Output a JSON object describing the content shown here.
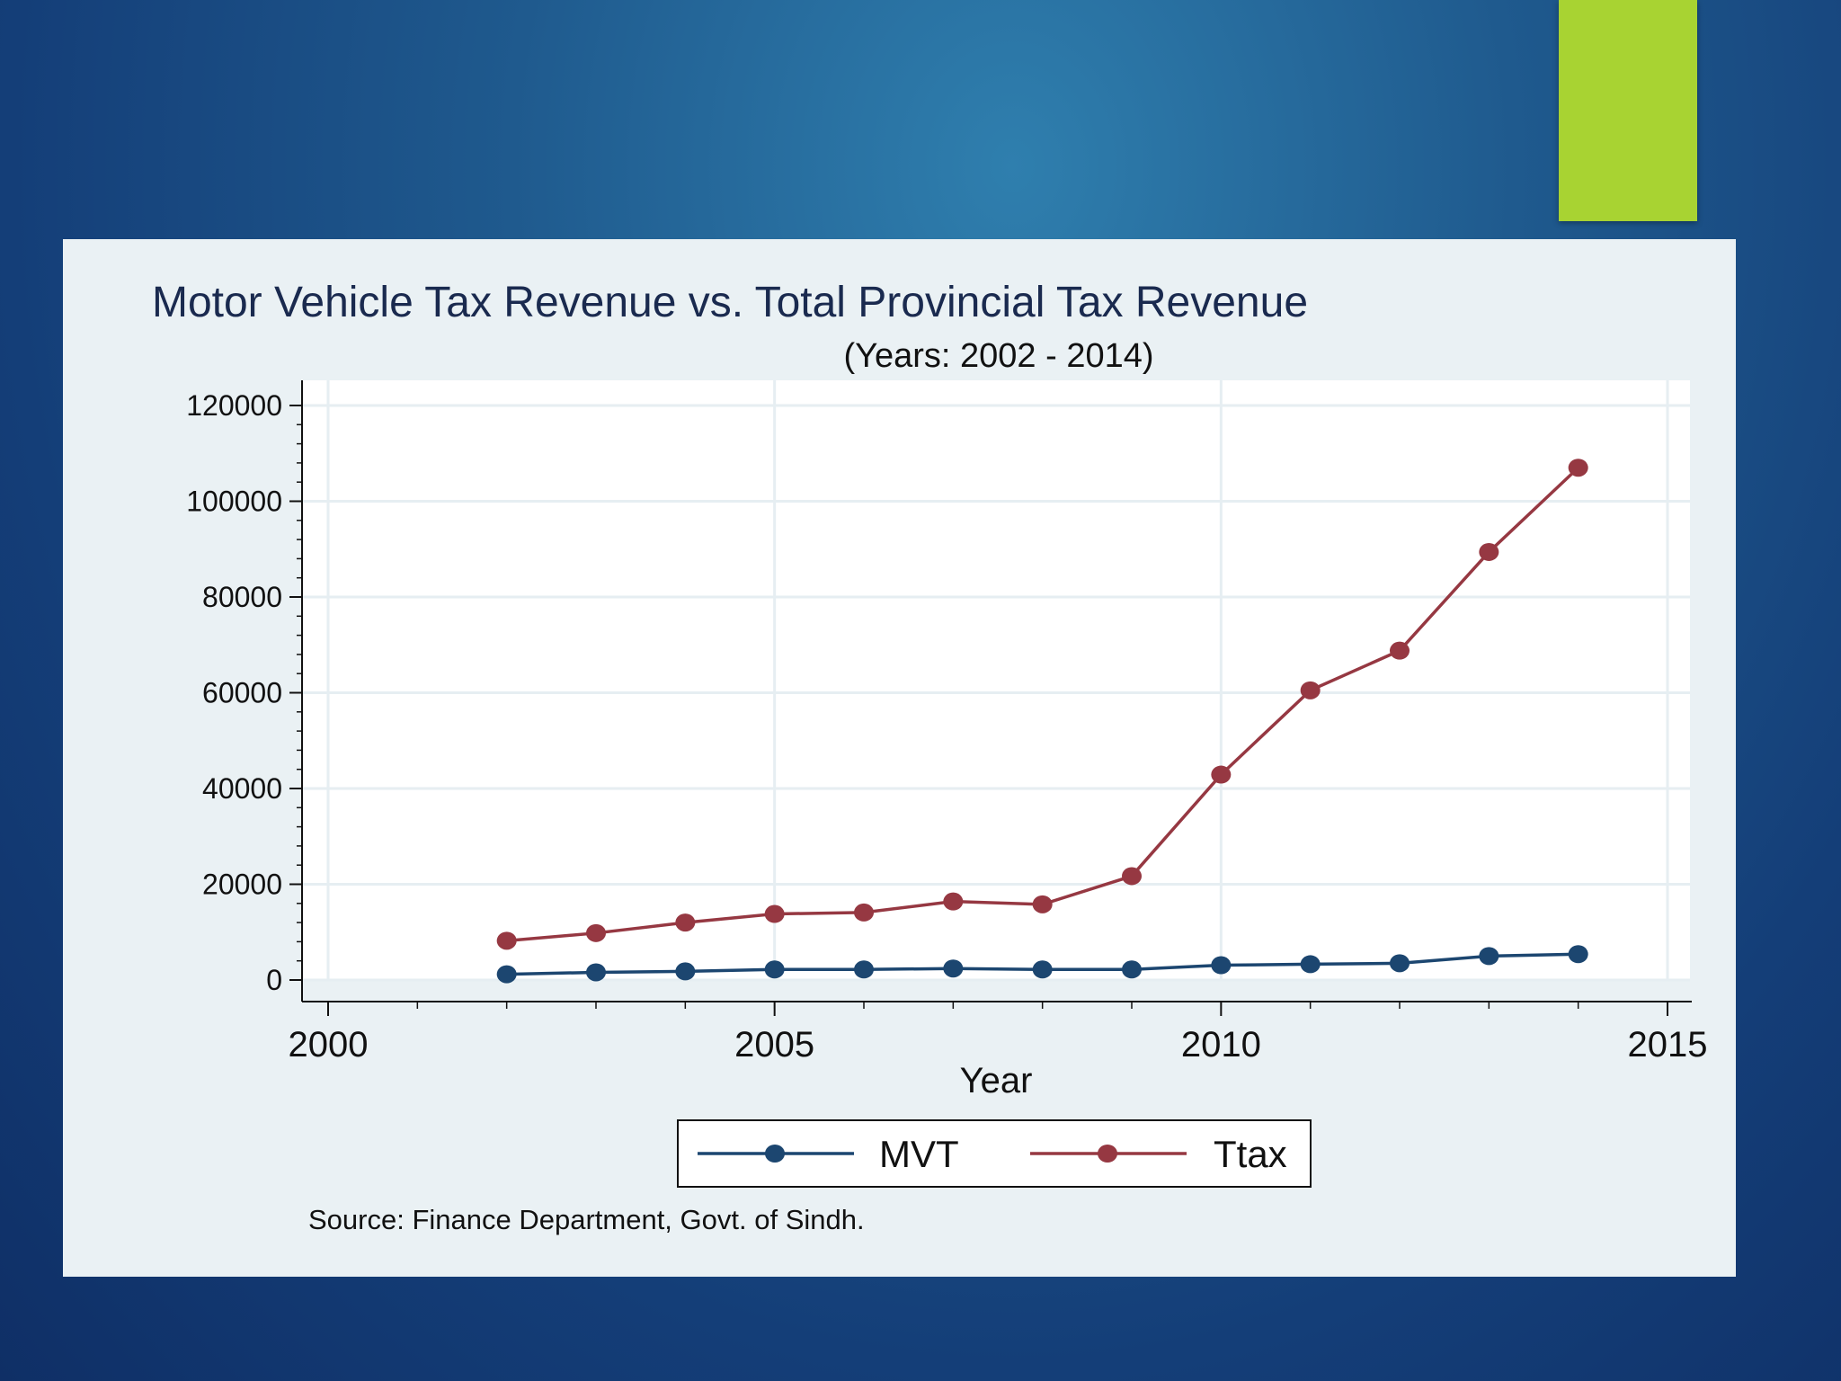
{
  "slide": {
    "accent_color": "#a8d332"
  },
  "chart_data": {
    "type": "line",
    "title": "Motor Vehicle Tax Revenue vs. Total Provincial Tax Revenue",
    "subtitle": "(Years: 2002 - 2014)",
    "xlabel": "Year",
    "ylabel": "",
    "x": [
      2002,
      2003,
      2004,
      2005,
      2006,
      2007,
      2008,
      2009,
      2010,
      2011,
      2012,
      2013,
      2014
    ],
    "series": [
      {
        "name": "MVT",
        "color": "#1c4670",
        "values": [
          1200,
          1600,
          1800,
          2200,
          2200,
          2400,
          2200,
          2200,
          3100,
          3300,
          3500,
          5000,
          5400
        ]
      },
      {
        "name": "Ttax",
        "color": "#963842",
        "values": [
          8200,
          9800,
          12000,
          13800,
          14100,
          16400,
          15800,
          21700,
          42900,
          60500,
          68800,
          89400,
          107000
        ]
      }
    ],
    "xlim": [
      2000,
      2015
    ],
    "ylim": [
      0,
      120000
    ],
    "xticks": [
      "2000",
      "2005",
      "2010",
      "2015"
    ],
    "yticks": [
      "0",
      "20000",
      "40000",
      "60000",
      "80000",
      "100000",
      "120000"
    ],
    "grid": true,
    "legend_position": "bottom",
    "source_note": "Source: Finance Department, Govt. of Sindh."
  }
}
